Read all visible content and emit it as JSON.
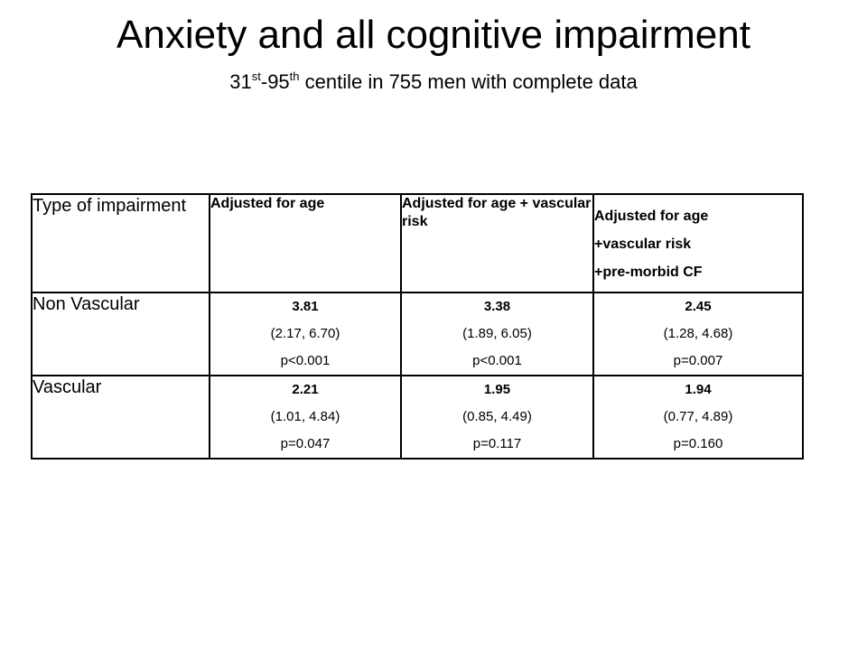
{
  "title": "Anxiety and all cognitive impairment",
  "subtitle": {
    "a": "31",
    "a_sup": "st",
    "b": "-95",
    "b_sup": "th",
    "rest": " centile in 755 men with complete data"
  },
  "table": {
    "header": {
      "type": "Type of impairment",
      "col1": "Adjusted for age",
      "col2": "Adjusted for age + vascular risk",
      "col3_lines": [
        "Adjusted for age",
        "+vascular risk",
        "+pre-morbid  CF"
      ]
    },
    "rows": [
      {
        "label": "Non Vascular",
        "cells": [
          {
            "estimate": "3.81",
            "ci": "(2.17, 6.70)",
            "p": "p<0.001"
          },
          {
            "estimate": "3.38",
            "ci": "(1.89, 6.05)",
            "p": "p<0.001"
          },
          {
            "estimate": "2.45",
            "ci": "(1.28, 4.68)",
            "p": "p=0.007"
          }
        ]
      },
      {
        "label": "Vascular",
        "cells": [
          {
            "estimate": "2.21",
            "ci": "(1.01, 4.84)",
            "p": "p=0.047"
          },
          {
            "estimate": "1.95",
            "ci": "(0.85, 4.49)",
            "p": "p=0.117"
          },
          {
            "estimate": "1.94",
            "ci": "(0.77, 4.89)",
            "p": "p=0.160"
          }
        ]
      }
    ]
  }
}
